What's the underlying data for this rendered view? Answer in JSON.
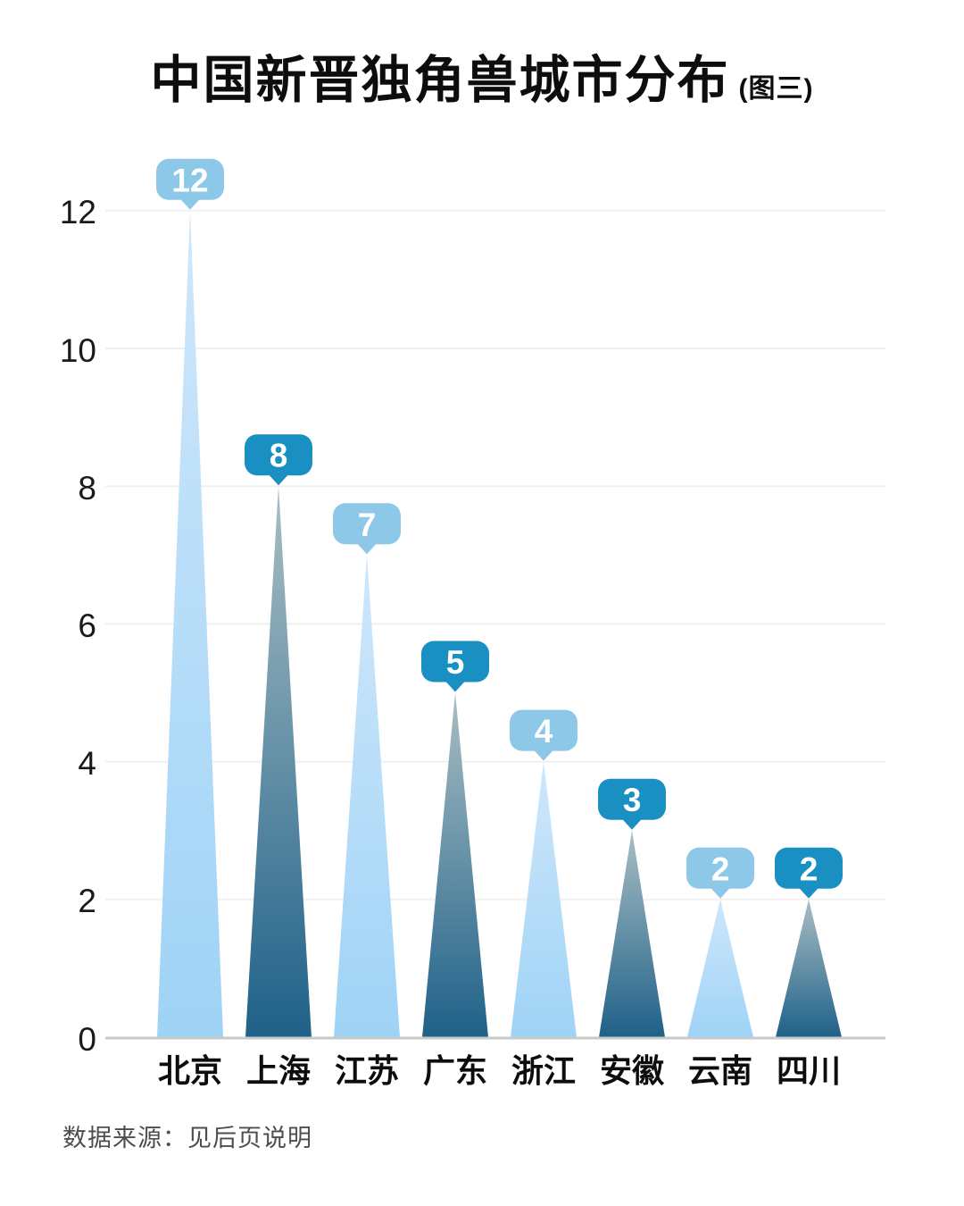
{
  "title": {
    "text": "中国新晋独角兽城市分布",
    "suffix": "(图三)"
  },
  "source_note": "数据来源：见后页说明",
  "chart_data": {
    "type": "bar",
    "shape": "triangle-peak",
    "title": "中国新晋独角兽城市分布",
    "title_suffix": "(图三)",
    "categories": [
      "北京",
      "上海",
      "江苏",
      "广东",
      "浙江",
      "安徽",
      "云南",
      "四川"
    ],
    "values": [
      12,
      8,
      7,
      5,
      4,
      3,
      2,
      2
    ],
    "bar_styles": [
      "light",
      "dark",
      "light",
      "dark",
      "light",
      "dark",
      "light",
      "dark"
    ],
    "data_labels": [
      "12",
      "8",
      "7",
      "5",
      "4",
      "3",
      "2",
      "2"
    ],
    "xlabel": "",
    "ylabel": "",
    "ylim": [
      0,
      12
    ],
    "yticks": [
      0,
      2,
      4,
      6,
      8,
      10,
      12
    ],
    "grid": true,
    "legend": "none",
    "colors": {
      "light_triangle_top": "#cfe7fb",
      "light_triangle_bottom": "#9fd3f6",
      "dark_triangle_top": "#a9bec3",
      "dark_triangle_bottom": "#1f6189",
      "light_badge": "#8dc8e8",
      "dark_badge": "#1a8fc1",
      "badge_text": "#ffffff",
      "gridline": "#f0f0f0",
      "baseline": "#c6cacb",
      "axis_text": "#1a1a1a"
    }
  }
}
